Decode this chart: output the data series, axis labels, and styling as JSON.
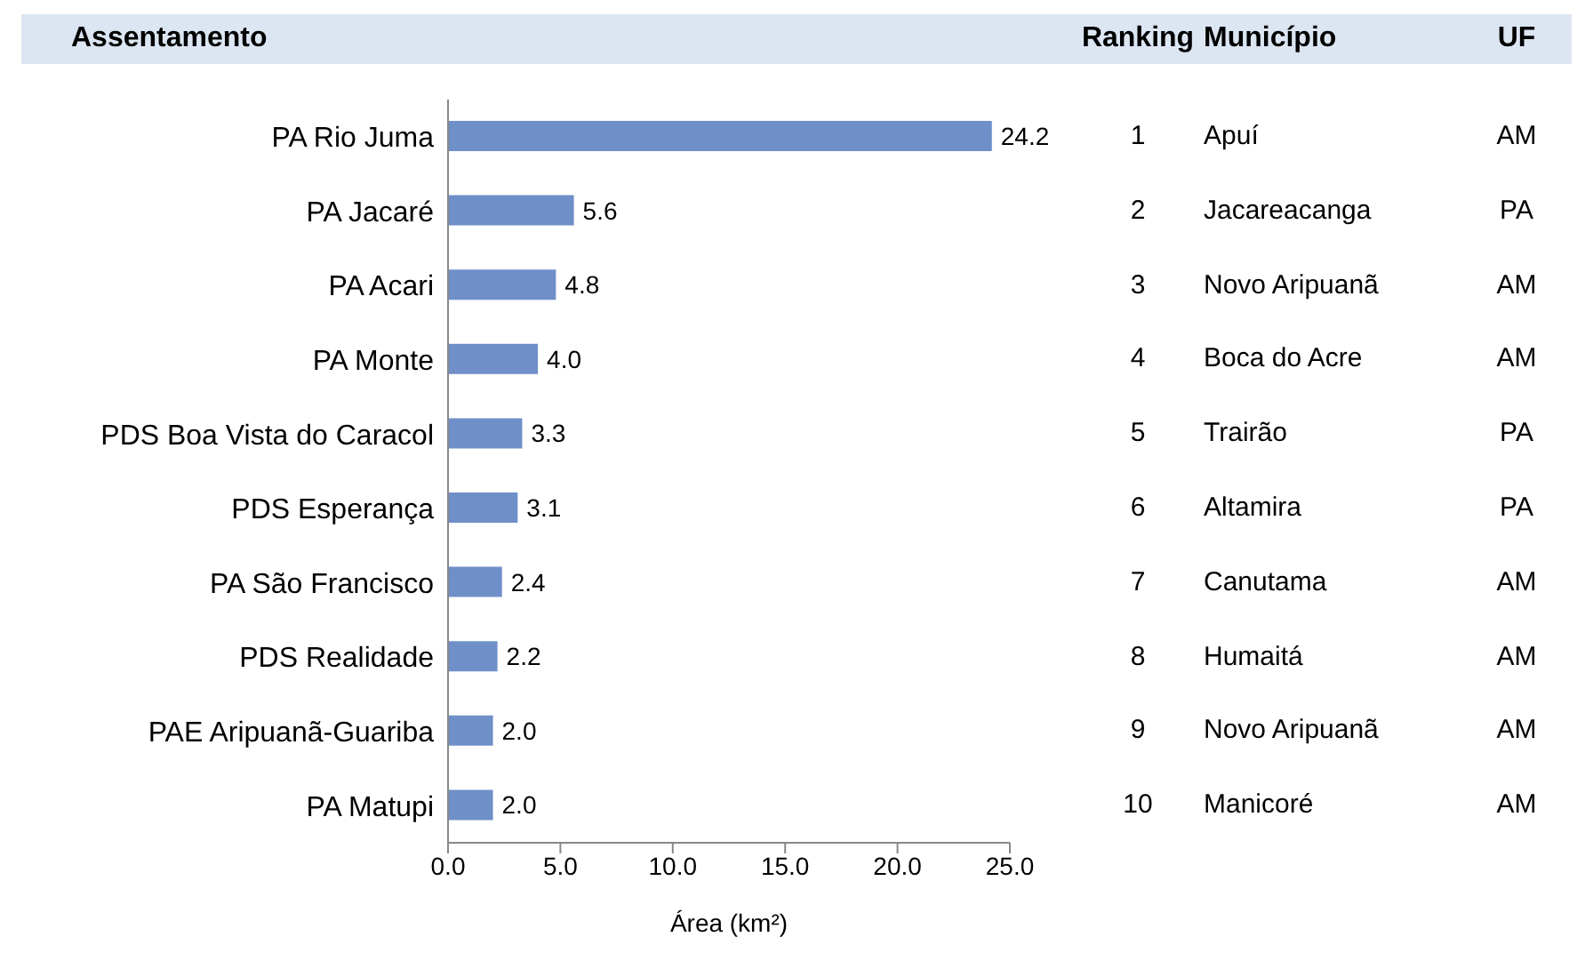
{
  "chart_data": {
    "type": "bar",
    "orientation": "horizontal",
    "ylabel": "Assentamento",
    "xlabel": "Área (km²)",
    "categories": [
      "PA Rio Juma",
      "PA Jacaré",
      "PA Acari",
      "PA Monte",
      "PDS Boa Vista do Caracol",
      "PDS Esperança",
      "PA São Francisco",
      "PDS Realidade",
      "PAE Aripuanã-Guariba",
      "PA Matupi"
    ],
    "values": [
      24.2,
      5.6,
      4.8,
      4.0,
      3.3,
      3.1,
      2.4,
      2.2,
      2.0,
      2.0
    ],
    "value_labels": [
      "24.2",
      "5.6",
      "4.8",
      "4.0",
      "3.3",
      "3.1",
      "2.4",
      "2.2",
      "2.0",
      "2.0"
    ],
    "color": "#6f8fc9",
    "xlim": [
      0,
      25
    ],
    "xticks": [
      {
        "value": 0,
        "label": "0.0"
      },
      {
        "value": 5,
        "label": "5.0"
      },
      {
        "value": 10,
        "label": "10.0"
      },
      {
        "value": 15,
        "label": "15.0"
      },
      {
        "value": 20,
        "label": "20.0"
      },
      {
        "value": 25,
        "label": "25.0"
      }
    ],
    "annotations": [
      "Ranking",
      "Município",
      "UF",
      "1",
      "Apuí",
      "AM",
      "2",
      "Jacareacanga",
      "PA",
      "3",
      "Novo Aripuanã",
      "AM",
      "4",
      "Boca do Acre",
      "AM",
      "5",
      "Trairão",
      "PA",
      "6",
      "Altamira",
      "PA",
      "7",
      "Canutama",
      "AM",
      "8",
      "Humaitá",
      "AM",
      "9",
      "Novo Aripuanã",
      "AM",
      "10",
      "Manicoré",
      "AM"
    ]
  }
}
